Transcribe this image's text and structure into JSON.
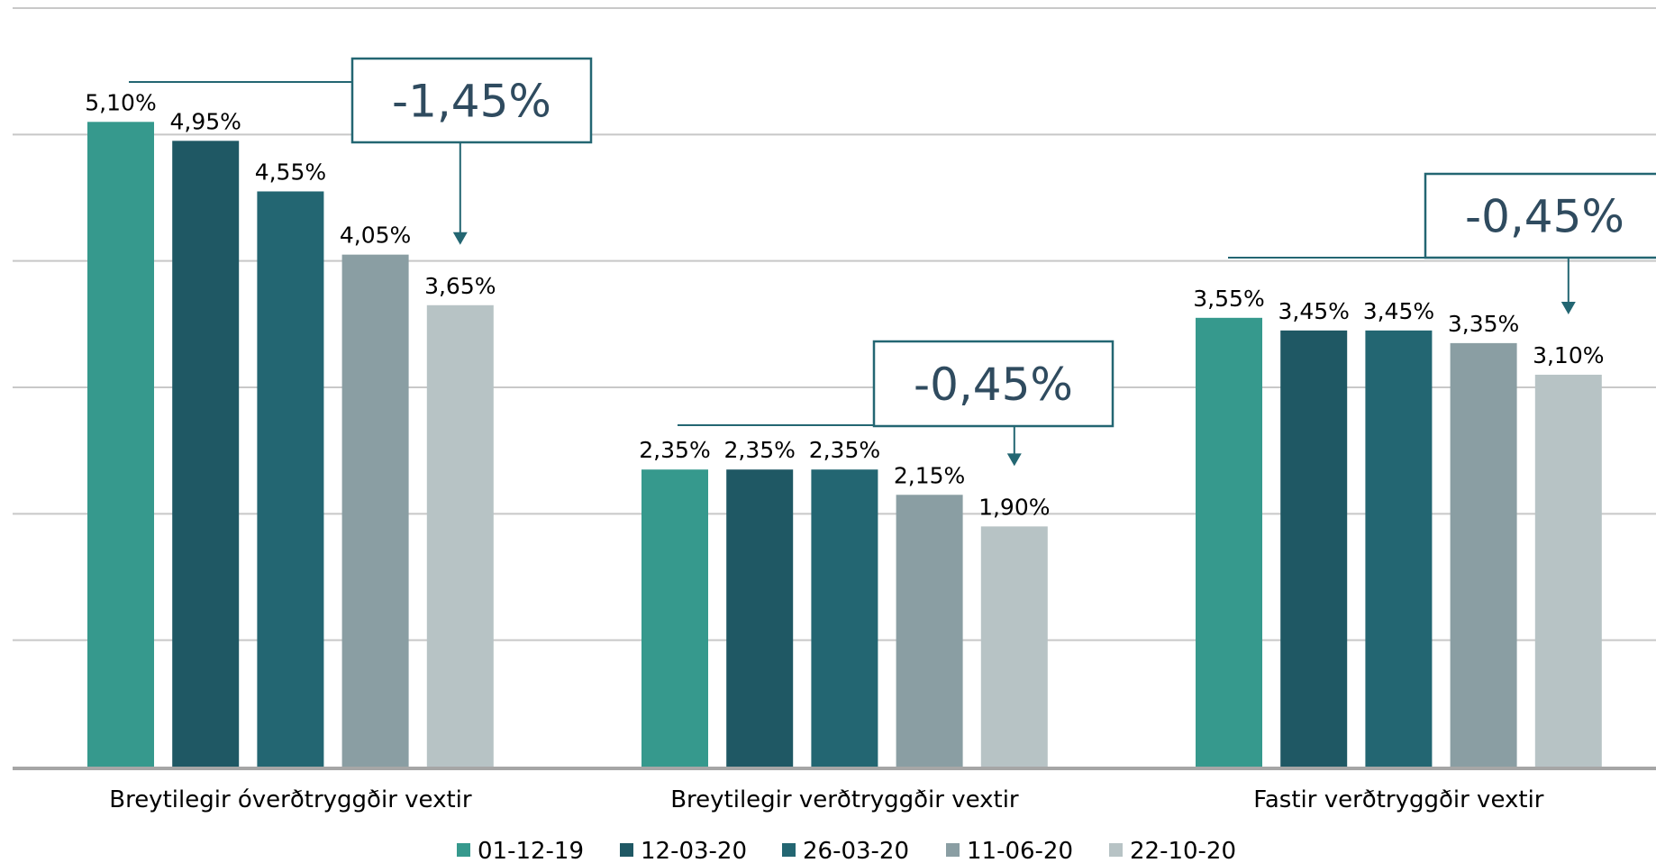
{
  "chart_data": {
    "type": "bar",
    "categories": [
      "Breytilegir óverðtryggðir vextir",
      "Breytilegir verðtryggðir vextir",
      "Fastir verðtryggðir vextir"
    ],
    "series": [
      {
        "name": "01-12-19",
        "color": "#36998d",
        "values": [
          5.1,
          2.35,
          3.55
        ],
        "labels": [
          "5,10%",
          "2,35%",
          "3,55%"
        ]
      },
      {
        "name": "12-03-20",
        "color": "#1f5864",
        "values": [
          4.95,
          2.35,
          3.45
        ],
        "labels": [
          "4,95%",
          "2,35%",
          "3,45%"
        ]
      },
      {
        "name": "26-03-20",
        "color": "#236672",
        "values": [
          4.55,
          2.35,
          3.45
        ],
        "labels": [
          "4,55%",
          "2,35%",
          "3,45%"
        ]
      },
      {
        "name": "11-06-20",
        "color": "#8a9ea3",
        "values": [
          4.05,
          2.15,
          3.35
        ],
        "labels": [
          "4,05%",
          "2,15%",
          "3,35%"
        ]
      },
      {
        "name": "22-10-20",
        "color": "#b7c3c5",
        "values": [
          3.65,
          1.9,
          3.1
        ],
        "labels": [
          "3,65%",
          "1,90%",
          "3,10%"
        ]
      }
    ],
    "ylim": [
      0,
      6
    ],
    "grid": true,
    "legend": "bottom",
    "annotations": [
      {
        "group": 0,
        "text": "-1,45%"
      },
      {
        "group": 1,
        "text": "-0,45%"
      },
      {
        "group": 2,
        "text": "-0,45%"
      }
    ]
  },
  "colors": {
    "grid": "#c8c8c8",
    "axis": "#a6a6a6",
    "callout": "#236672",
    "callout_text": "#2f4b5f"
  }
}
